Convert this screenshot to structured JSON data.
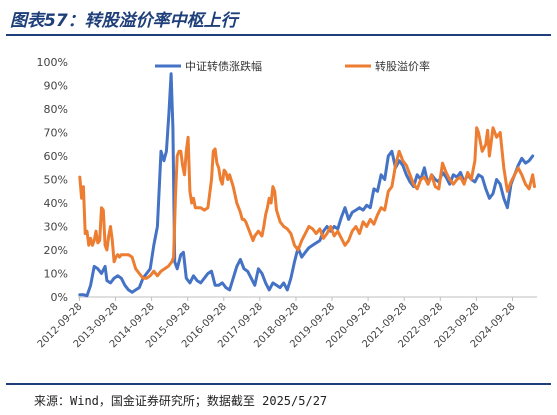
{
  "header": {
    "title": "图表57：转股溢价率中枢上行"
  },
  "footer": {
    "source": "来源：Wind，国金证券研究所；数据截至 2025/5/27"
  },
  "chart_data": {
    "type": "line",
    "title": "图表57：转股溢价率中枢上行",
    "xlabel": "",
    "ylabel": "",
    "ylim": [
      0,
      100
    ],
    "y_ticks": [
      "0%",
      "10%",
      "20%",
      "30%",
      "40%",
      "50%",
      "60%",
      "70%",
      "80%",
      "90%",
      "100%"
    ],
    "x_ticks": [
      "2012-09-28",
      "2013-09-28",
      "2014-09-28",
      "2015-09-28",
      "2016-09-28",
      "2017-09-28",
      "2018-09-28",
      "2019-09-28",
      "2020-09-28",
      "2021-09-28",
      "2022-09-28",
      "2023-09-28",
      "2024-09-28"
    ],
    "xlim": [
      2012.7,
      2025.42
    ],
    "grid": false,
    "legend_position": "top",
    "series": [
      {
        "name": "中证转债涨跌幅",
        "color": "#4472c4",
        "points": [
          [
            2012.75,
            1
          ],
          [
            2012.85,
            1
          ],
          [
            2012.95,
            0.5
          ],
          [
            2013.05,
            5
          ],
          [
            2013.15,
            13
          ],
          [
            2013.25,
            12
          ],
          [
            2013.35,
            10
          ],
          [
            2013.45,
            13
          ],
          [
            2013.5,
            7
          ],
          [
            2013.6,
            6
          ],
          [
            2013.7,
            8
          ],
          [
            2013.8,
            9
          ],
          [
            2013.9,
            8
          ],
          [
            2014.0,
            5
          ],
          [
            2014.1,
            3
          ],
          [
            2014.2,
            2
          ],
          [
            2014.3,
            3
          ],
          [
            2014.4,
            4
          ],
          [
            2014.5,
            8
          ],
          [
            2014.6,
            10
          ],
          [
            2014.7,
            12
          ],
          [
            2014.8,
            22
          ],
          [
            2014.9,
            30
          ],
          [
            2015.0,
            62
          ],
          [
            2015.08,
            58
          ],
          [
            2015.15,
            62
          ],
          [
            2015.22,
            78
          ],
          [
            2015.28,
            95
          ],
          [
            2015.33,
            72
          ],
          [
            2015.38,
            15
          ],
          [
            2015.45,
            12
          ],
          [
            2015.55,
            18
          ],
          [
            2015.62,
            19
          ],
          [
            2015.7,
            8
          ],
          [
            2015.8,
            6
          ],
          [
            2015.9,
            9
          ],
          [
            2016.0,
            7
          ],
          [
            2016.1,
            6
          ],
          [
            2016.2,
            8
          ],
          [
            2016.3,
            10
          ],
          [
            2016.4,
            11
          ],
          [
            2016.5,
            5
          ],
          [
            2016.6,
            5
          ],
          [
            2016.7,
            6
          ],
          [
            2016.8,
            4
          ],
          [
            2016.9,
            3
          ],
          [
            2017.0,
            8
          ],
          [
            2017.1,
            13
          ],
          [
            2017.2,
            16
          ],
          [
            2017.3,
            12
          ],
          [
            2017.4,
            11
          ],
          [
            2017.5,
            8
          ],
          [
            2017.6,
            5
          ],
          [
            2017.7,
            12
          ],
          [
            2017.8,
            10
          ],
          [
            2017.9,
            6
          ],
          [
            2018.0,
            3
          ],
          [
            2018.1,
            6
          ],
          [
            2018.2,
            5
          ],
          [
            2018.3,
            4
          ],
          [
            2018.4,
            6
          ],
          [
            2018.5,
            3
          ],
          [
            2018.6,
            8
          ],
          [
            2018.7,
            15
          ],
          [
            2018.8,
            21
          ],
          [
            2018.9,
            17
          ],
          [
            2019.0,
            19
          ],
          [
            2019.1,
            21
          ],
          [
            2019.2,
            22
          ],
          [
            2019.3,
            23
          ],
          [
            2019.4,
            24
          ],
          [
            2019.5,
            28
          ],
          [
            2019.6,
            30
          ],
          [
            2019.7,
            28
          ],
          [
            2019.8,
            30
          ],
          [
            2019.9,
            29
          ],
          [
            2020.0,
            34
          ],
          [
            2020.1,
            38
          ],
          [
            2020.2,
            33
          ],
          [
            2020.3,
            36
          ],
          [
            2020.4,
            37
          ],
          [
            2020.5,
            38
          ],
          [
            2020.6,
            37
          ],
          [
            2020.7,
            39
          ],
          [
            2020.8,
            38
          ],
          [
            2020.9,
            46
          ],
          [
            2021.0,
            45
          ],
          [
            2021.1,
            52
          ],
          [
            2021.2,
            50
          ],
          [
            2021.3,
            60
          ],
          [
            2021.4,
            62
          ],
          [
            2021.5,
            55
          ],
          [
            2021.6,
            58
          ],
          [
            2021.7,
            56
          ],
          [
            2021.8,
            52
          ],
          [
            2021.9,
            49
          ],
          [
            2022.0,
            47
          ],
          [
            2022.1,
            52
          ],
          [
            2022.2,
            50
          ],
          [
            2022.3,
            55
          ],
          [
            2022.4,
            48
          ],
          [
            2022.5,
            52
          ],
          [
            2022.6,
            50
          ],
          [
            2022.7,
            49
          ],
          [
            2022.8,
            53
          ],
          [
            2022.9,
            51
          ],
          [
            2023.0,
            48
          ],
          [
            2023.1,
            52
          ],
          [
            2023.2,
            51
          ],
          [
            2023.3,
            53
          ],
          [
            2023.4,
            49
          ],
          [
            2023.5,
            52
          ],
          [
            2023.6,
            50
          ],
          [
            2023.7,
            49
          ],
          [
            2023.8,
            52
          ],
          [
            2023.9,
            51
          ],
          [
            2024.0,
            46
          ],
          [
            2024.1,
            42
          ],
          [
            2024.2,
            44
          ],
          [
            2024.3,
            50
          ],
          [
            2024.4,
            48
          ],
          [
            2024.5,
            42
          ],
          [
            2024.6,
            38
          ],
          [
            2024.7,
            48
          ],
          [
            2024.8,
            52
          ],
          [
            2024.9,
            56
          ],
          [
            2025.0,
            59
          ],
          [
            2025.1,
            57
          ],
          [
            2025.2,
            58
          ],
          [
            2025.3,
            60
          ]
        ]
      },
      {
        "name": "转股溢价率",
        "color": "#ed7d31",
        "points": [
          [
            2012.75,
            51
          ],
          [
            2012.8,
            42
          ],
          [
            2012.85,
            47
          ],
          [
            2012.9,
            27
          ],
          [
            2012.95,
            28
          ],
          [
            2013.0,
            22
          ],
          [
            2013.05,
            25
          ],
          [
            2013.1,
            22
          ],
          [
            2013.15,
            24
          ],
          [
            2013.2,
            28
          ],
          [
            2013.25,
            23
          ],
          [
            2013.3,
            24
          ],
          [
            2013.35,
            38
          ],
          [
            2013.4,
            37
          ],
          [
            2013.45,
            22
          ],
          [
            2013.5,
            20
          ],
          [
            2013.55,
            26
          ],
          [
            2013.6,
            30
          ],
          [
            2013.65,
            24
          ],
          [
            2013.7,
            15
          ],
          [
            2013.75,
            17
          ],
          [
            2013.8,
            18
          ],
          [
            2013.85,
            17
          ],
          [
            2013.9,
            18
          ],
          [
            2014.0,
            18
          ],
          [
            2014.1,
            18
          ],
          [
            2014.2,
            17
          ],
          [
            2014.3,
            12
          ],
          [
            2014.4,
            10
          ],
          [
            2014.5,
            8
          ],
          [
            2014.6,
            8
          ],
          [
            2014.7,
            9
          ],
          [
            2014.8,
            11
          ],
          [
            2014.9,
            9
          ],
          [
            2015.0,
            11
          ],
          [
            2015.1,
            12
          ],
          [
            2015.2,
            13
          ],
          [
            2015.3,
            15
          ],
          [
            2015.35,
            17
          ],
          [
            2015.4,
            42
          ],
          [
            2015.45,
            60
          ],
          [
            2015.5,
            62
          ],
          [
            2015.55,
            62
          ],
          [
            2015.6,
            56
          ],
          [
            2015.65,
            52
          ],
          [
            2015.7,
            62
          ],
          [
            2015.75,
            68
          ],
          [
            2015.8,
            45
          ],
          [
            2015.85,
            40
          ],
          [
            2015.9,
            42
          ],
          [
            2015.95,
            38
          ],
          [
            2016.0,
            38
          ],
          [
            2016.1,
            38
          ],
          [
            2016.2,
            37
          ],
          [
            2016.3,
            38
          ],
          [
            2016.4,
            50
          ],
          [
            2016.45,
            62
          ],
          [
            2016.5,
            63
          ],
          [
            2016.55,
            57
          ],
          [
            2016.6,
            55
          ],
          [
            2016.65,
            50
          ],
          [
            2016.7,
            48
          ],
          [
            2016.75,
            54
          ],
          [
            2016.8,
            53
          ],
          [
            2016.85,
            50
          ],
          [
            2016.9,
            52
          ],
          [
            2017.0,
            47
          ],
          [
            2017.1,
            40
          ],
          [
            2017.2,
            36
          ],
          [
            2017.25,
            33
          ],
          [
            2017.3,
            33
          ],
          [
            2017.35,
            32
          ],
          [
            2017.4,
            30
          ],
          [
            2017.45,
            28
          ],
          [
            2017.5,
            26
          ],
          [
            2017.55,
            24
          ],
          [
            2017.6,
            26
          ],
          [
            2017.65,
            27
          ],
          [
            2017.7,
            28
          ],
          [
            2017.75,
            27
          ],
          [
            2017.8,
            26
          ],
          [
            2017.85,
            30
          ],
          [
            2017.9,
            35
          ],
          [
            2017.95,
            38
          ],
          [
            2018.0,
            42
          ],
          [
            2018.05,
            40
          ],
          [
            2018.1,
            47
          ],
          [
            2018.15,
            45
          ],
          [
            2018.2,
            37
          ],
          [
            2018.3,
            32
          ],
          [
            2018.4,
            30
          ],
          [
            2018.5,
            29
          ],
          [
            2018.6,
            27
          ],
          [
            2018.7,
            22
          ],
          [
            2018.8,
            20
          ],
          [
            2018.9,
            24
          ],
          [
            2019.0,
            27
          ],
          [
            2019.1,
            30
          ],
          [
            2019.2,
            29
          ],
          [
            2019.3,
            27
          ],
          [
            2019.4,
            29
          ],
          [
            2019.5,
            25
          ],
          [
            2019.6,
            27
          ],
          [
            2019.7,
            30
          ],
          [
            2019.8,
            26
          ],
          [
            2019.9,
            28
          ],
          [
            2020.0,
            25
          ],
          [
            2020.1,
            22
          ],
          [
            2020.2,
            24
          ],
          [
            2020.3,
            28
          ],
          [
            2020.4,
            30
          ],
          [
            2020.5,
            27
          ],
          [
            2020.6,
            32
          ],
          [
            2020.7,
            30
          ],
          [
            2020.8,
            33
          ],
          [
            2020.9,
            31
          ],
          [
            2021.0,
            35
          ],
          [
            2021.1,
            38
          ],
          [
            2021.2,
            37
          ],
          [
            2021.3,
            45
          ],
          [
            2021.4,
            47
          ],
          [
            2021.5,
            56
          ],
          [
            2021.6,
            62
          ],
          [
            2021.7,
            58
          ],
          [
            2021.8,
            56
          ],
          [
            2021.9,
            52
          ],
          [
            2022.0,
            48
          ],
          [
            2022.1,
            46
          ],
          [
            2022.2,
            50
          ],
          [
            2022.3,
            51
          ],
          [
            2022.4,
            48
          ],
          [
            2022.5,
            52
          ],
          [
            2022.6,
            47
          ],
          [
            2022.7,
            46
          ],
          [
            2022.8,
            57
          ],
          [
            2022.9,
            53
          ],
          [
            2023.0,
            50
          ],
          [
            2023.1,
            48
          ],
          [
            2023.2,
            50
          ],
          [
            2023.3,
            51
          ],
          [
            2023.4,
            48
          ],
          [
            2023.5,
            53
          ],
          [
            2023.6,
            50
          ],
          [
            2023.7,
            58
          ],
          [
            2023.75,
            72
          ],
          [
            2023.8,
            70
          ],
          [
            2023.9,
            62
          ],
          [
            2024.0,
            65
          ],
          [
            2024.05,
            71
          ],
          [
            2024.1,
            60
          ],
          [
            2024.2,
            72
          ],
          [
            2024.3,
            68
          ],
          [
            2024.4,
            70
          ],
          [
            2024.5,
            55
          ],
          [
            2024.6,
            45
          ],
          [
            2024.7,
            49
          ],
          [
            2024.8,
            52
          ],
          [
            2024.9,
            55
          ],
          [
            2025.0,
            52
          ],
          [
            2025.1,
            48
          ],
          [
            2025.2,
            46
          ],
          [
            2025.3,
            52
          ],
          [
            2025.35,
            47
          ]
        ]
      }
    ]
  }
}
